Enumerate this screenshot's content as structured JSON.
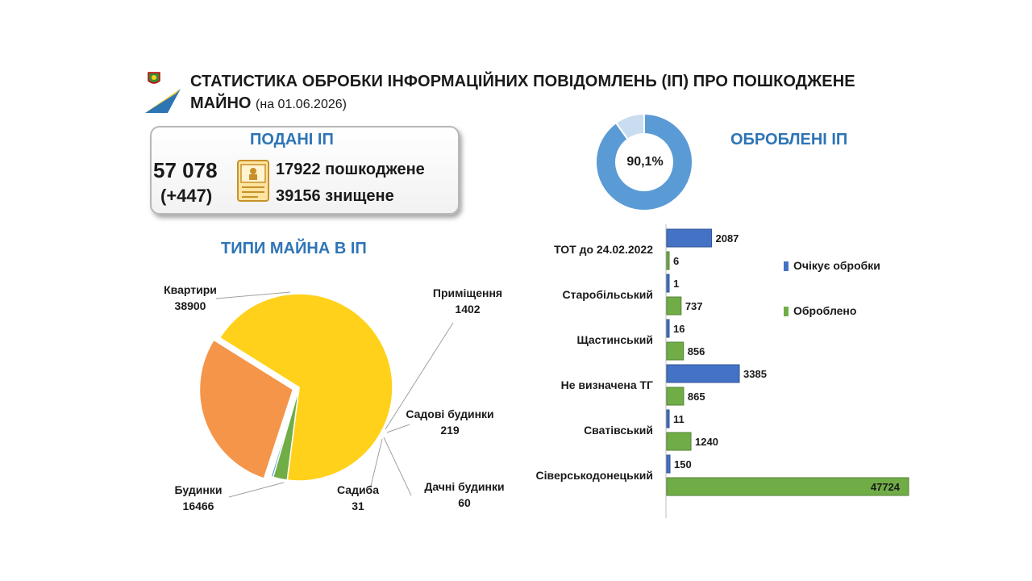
{
  "header": {
    "title_line1": "СТАТИСТИКА ОБРОБКИ ІНФОРМАЦІЙНИХ ПОВІДОМЛЕНЬ (ІП) ПРО ПОШКОДЖЕНЕ",
    "title_line2": "МАЙНО",
    "date": "(на 01.06.2026)"
  },
  "submitted": {
    "title": "ПОДАНІ ІП",
    "total": "57 078",
    "delta": "(+447)",
    "damaged": "17922 пошкоджене",
    "destroyed": "39156 знищене",
    "icon": "document-icon"
  },
  "processed": {
    "title": "ОБРОБЛЕНІ ІП",
    "percent_label": "90,1%",
    "percent": 90.1
  },
  "colors": {
    "accent_title": "#2e75b6",
    "blue": "#4472c4",
    "green": "#70ad47",
    "yellow": "#ffd11a",
    "orange": "#f4954a",
    "donut": "#5b9bd5",
    "donut_rest": "#c9dcf0"
  },
  "chart_data": [
    {
      "type": "pie",
      "title": "ТИПИ МАЙНА В ІП",
      "categories": [
        "Квартири",
        "Приміщення",
        "Садові будинки",
        "Дачні будинки",
        "Садиба",
        "Будинки"
      ],
      "values": [
        38900,
        1402,
        219,
        60,
        31,
        16466
      ],
      "colors": [
        "#ffd11a",
        "#70ad47",
        "#5b9bd5",
        "#a5a5a5",
        "#264478",
        "#f4954a"
      ]
    },
    {
      "type": "bar",
      "orientation": "horizontal",
      "categories": [
        "ТОТ до 24.02.2022",
        "Старобільський",
        "Щастинський",
        "Не визначена ТГ",
        "Сватівський",
        "Сіверськодонецький"
      ],
      "series": [
        {
          "name": "Очікує обробки",
          "values": [
            2087,
            1,
            16,
            3385,
            11,
            150
          ],
          "color": "#4472c4"
        },
        {
          "name": "Оброблено",
          "values": [
            6,
            737,
            856,
            865,
            1240,
            47724
          ],
          "color": "#70ad47"
        }
      ],
      "legend": "right"
    }
  ]
}
